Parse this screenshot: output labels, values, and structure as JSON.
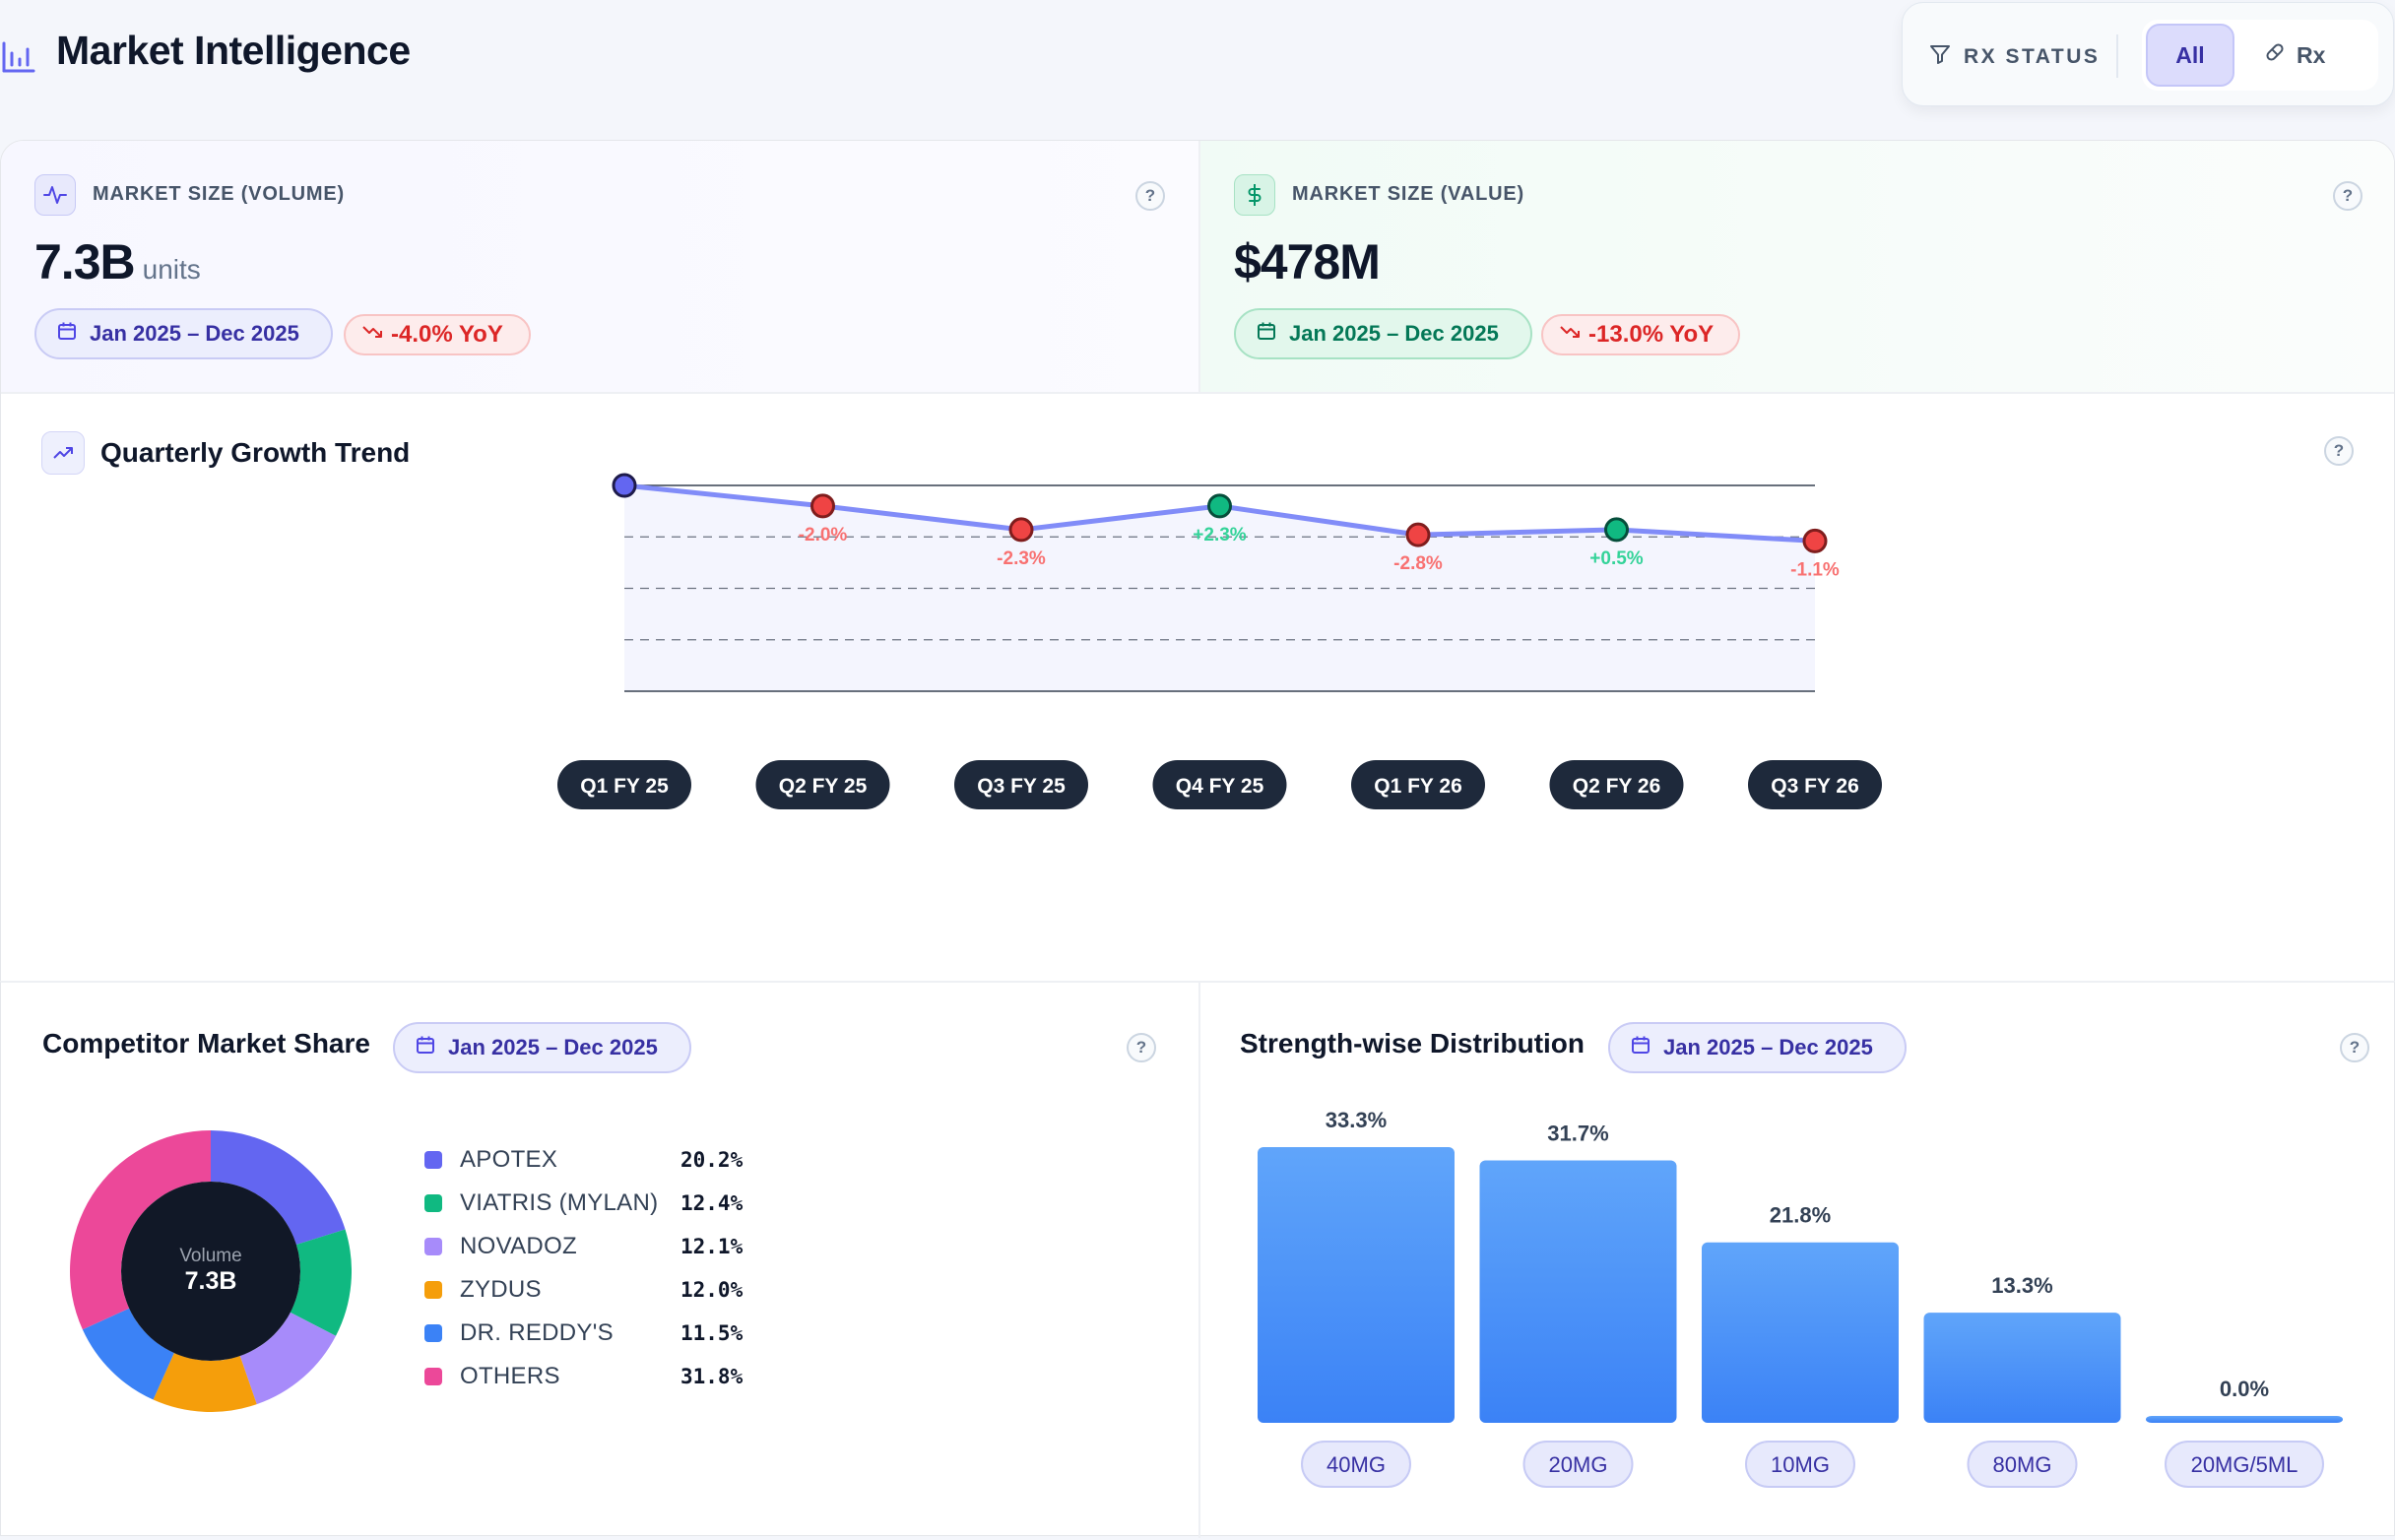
{
  "header": {
    "title": "Market Intelligence",
    "filter": {
      "label": "RX STATUS",
      "options": [
        "All",
        "Rx"
      ],
      "selected": "All"
    }
  },
  "kpis": {
    "volume": {
      "label": "MARKET SIZE (VOLUME)",
      "value": "7.3B",
      "unit": "units",
      "date_range": "Jan 2025 – Dec 2025",
      "yoy": "-4.0% YoY",
      "help": "?"
    },
    "value": {
      "label": "MARKET SIZE (VALUE)",
      "value": "$478M",
      "date_range": "Jan 2025 – Dec 2025",
      "yoy": "-13.0% YoY",
      "help": "?"
    }
  },
  "trend": {
    "title": "Quarterly Growth Trend",
    "help": "?"
  },
  "competitor": {
    "title": "Competitor Market Share",
    "date_range": "Jan 2025 – Dec 2025",
    "help": "?",
    "center_label": "Volume",
    "center_value": "7.3B"
  },
  "strength": {
    "title": "Strength-wise Distribution",
    "date_range": "Jan 2025 – Dec 2025",
    "help": "?"
  },
  "colors": {
    "accent": "#6366f1",
    "positive": "#10b981",
    "negative": "#ef4444",
    "bar": "#3b82f6"
  },
  "chart_data": [
    {
      "type": "line",
      "title": "Quarterly Growth Trend",
      "categories": [
        "Q1 FY 25",
        "Q2 FY 25",
        "Q3 FY 25",
        "Q4 FY 25",
        "Q1 FY 26",
        "Q2 FY 26",
        "Q3 FY 26"
      ],
      "growth_labels": [
        "",
        "-2.0%",
        "-2.3%",
        "+2.3%",
        "-2.8%",
        "+0.5%",
        "-1.1%"
      ],
      "point_status": [
        "baseline",
        "negative",
        "negative",
        "positive",
        "negative",
        "positive",
        "negative"
      ],
      "index_values": [
        100,
        98.0,
        95.7,
        98.0,
        95.2,
        95.7,
        94.6
      ],
      "ylim": [
        80,
        100
      ],
      "grid": true
    },
    {
      "type": "pie",
      "title": "Competitor Market Share",
      "labels": [
        "APOTEX",
        "VIATRIS (MYLAN)",
        "NOVADOZ",
        "ZYDUS",
        "DR. REDDY'S",
        "OTHERS"
      ],
      "display_values": [
        "20.2%",
        "12.4%",
        "12.1%",
        "12.0%",
        "11.5%",
        "31.8%"
      ],
      "values": [
        20.2,
        12.4,
        12.1,
        12.0,
        11.5,
        31.8
      ],
      "colors": [
        "#6366f1",
        "#10b981",
        "#a78bfa",
        "#f59e0b",
        "#3b82f6",
        "#ec4899"
      ],
      "legend": "right"
    },
    {
      "type": "bar",
      "title": "Strength-wise Distribution",
      "categories": [
        "40MG",
        "20MG",
        "10MG",
        "80MG",
        "20MG/5ML"
      ],
      "display_values": [
        "33.3%",
        "31.7%",
        "21.8%",
        "13.3%",
        "0.0%"
      ],
      "values": [
        33.3,
        31.7,
        21.8,
        13.3,
        0.0
      ],
      "ylim": [
        0,
        33.3
      ]
    }
  ]
}
